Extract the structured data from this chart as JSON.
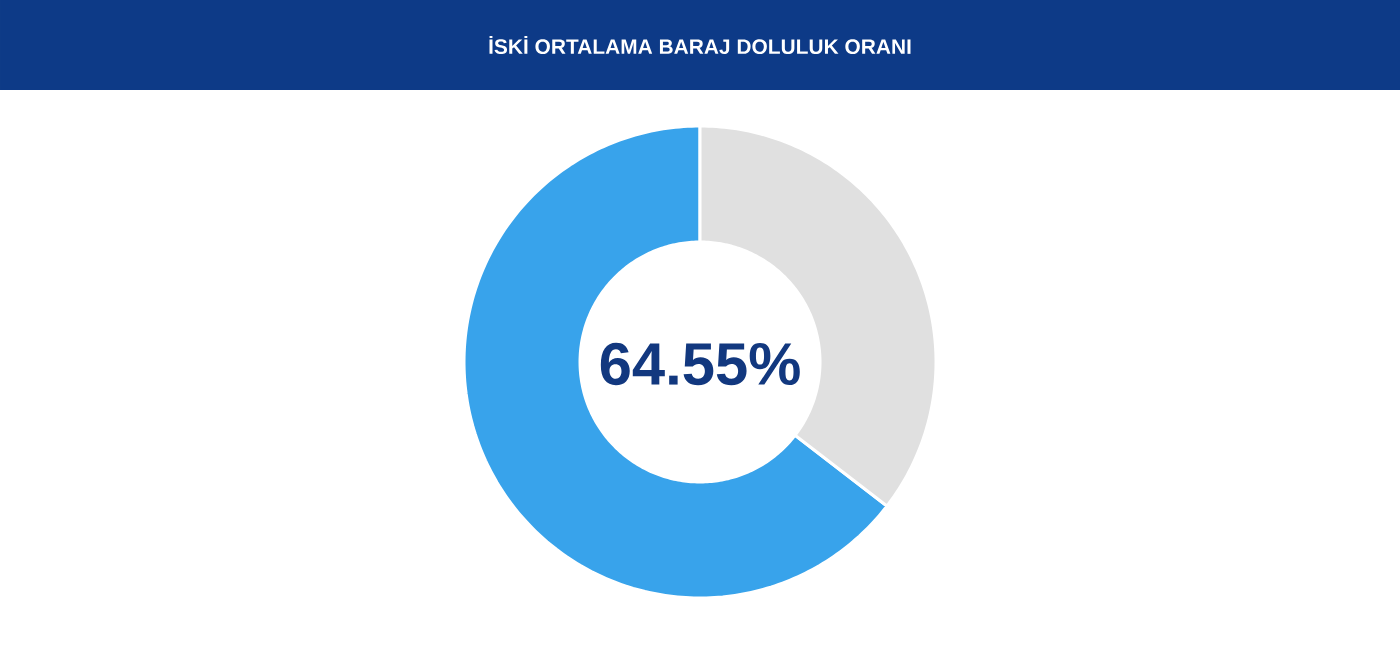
{
  "chart_data": {
    "type": "donut",
    "title": "İSKİ ORTALAMA BARAJ DOLULUK ORANI",
    "categories": [
      null,
      null
    ],
    "values": [
      64.55,
      35.45
    ],
    "colors": [
      "#38a3eb",
      "#e0e0e0"
    ],
    "annotations": [
      "64.55%"
    ]
  }
}
